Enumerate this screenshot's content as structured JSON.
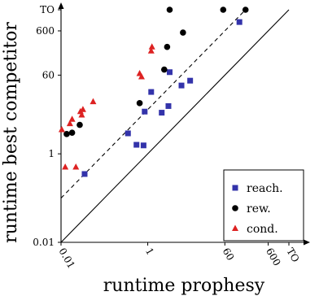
{
  "chart_data": {
    "type": "scatter",
    "xlabel": "runtime prophesy",
    "ylabel": "runtime best competitor",
    "x_scale": "log",
    "y_scale": "log",
    "xlim": [
      0.01,
      1800
    ],
    "ylim": [
      0.01,
      1800
    ],
    "x_ticks": [
      {
        "value": 0.01,
        "label": "0.01"
      },
      {
        "value": 1,
        "label": "1"
      },
      {
        "value": 60,
        "label": "60"
      },
      {
        "value": 600,
        "label": "600"
      },
      {
        "value": 1800,
        "label": "TO"
      }
    ],
    "y_ticks": [
      {
        "value": 0.01,
        "label": "0.01"
      },
      {
        "value": 1,
        "label": "1"
      },
      {
        "value": 60,
        "label": "60"
      },
      {
        "value": 600,
        "label": "600"
      },
      {
        "value": 1800,
        "label": "TO"
      }
    ],
    "reference_lines": [
      {
        "name": "y = x",
        "style": "solid",
        "factor": 1
      },
      {
        "name": "y = 10x",
        "style": "dashed",
        "factor": 10
      }
    ],
    "legend_position": "bottom-right",
    "series": [
      {
        "name": "reach.",
        "marker": "square",
        "color": "#3333aa",
        "points": [
          {
            "x": 0.035,
            "y": 0.35
          },
          {
            "x": 0.35,
            "y": 2.9
          },
          {
            "x": 0.55,
            "y": 1.6
          },
          {
            "x": 0.8,
            "y": 1.55
          },
          {
            "x": 0.85,
            "y": 9
          },
          {
            "x": 1.2,
            "y": 25
          },
          {
            "x": 2.1,
            "y": 8.5
          },
          {
            "x": 3.0,
            "y": 12
          },
          {
            "x": 3.2,
            "y": 70
          },
          {
            "x": 6.0,
            "y": 35
          },
          {
            "x": 9.5,
            "y": 45
          },
          {
            "x": 130,
            "y": 950
          }
        ]
      },
      {
        "name": "rew.",
        "marker": "circle",
        "color": "#000000",
        "points": [
          {
            "x": 0.0135,
            "y": 2.8
          },
          {
            "x": 0.018,
            "y": 3.0
          },
          {
            "x": 0.027,
            "y": 4.5
          },
          {
            "x": 0.65,
            "y": 14
          },
          {
            "x": 2.4,
            "y": 80
          },
          {
            "x": 2.8,
            "y": 260
          },
          {
            "x": 3.2,
            "y": 1800
          },
          {
            "x": 6.5,
            "y": 550
          },
          {
            "x": 55,
            "y": 1800
          },
          {
            "x": 180,
            "y": 1800
          }
        ]
      },
      {
        "name": "cond.",
        "marker": "triangle",
        "color": "#dd2222",
        "points": [
          {
            "x": 0.0104,
            "y": 3.5
          },
          {
            "x": 0.0125,
            "y": 0.5
          },
          {
            "x": 0.016,
            "y": 4.8
          },
          {
            "x": 0.018,
            "y": 6.0
          },
          {
            "x": 0.022,
            "y": 0.5
          },
          {
            "x": 0.028,
            "y": 9.0
          },
          {
            "x": 0.032,
            "y": 10.0
          },
          {
            "x": 0.03,
            "y": 7.5
          },
          {
            "x": 0.055,
            "y": 15.0
          },
          {
            "x": 0.65,
            "y": 65
          },
          {
            "x": 0.72,
            "y": 55
          },
          {
            "x": 1.2,
            "y": 210
          },
          {
            "x": 1.25,
            "y": 260
          }
        ]
      }
    ]
  }
}
